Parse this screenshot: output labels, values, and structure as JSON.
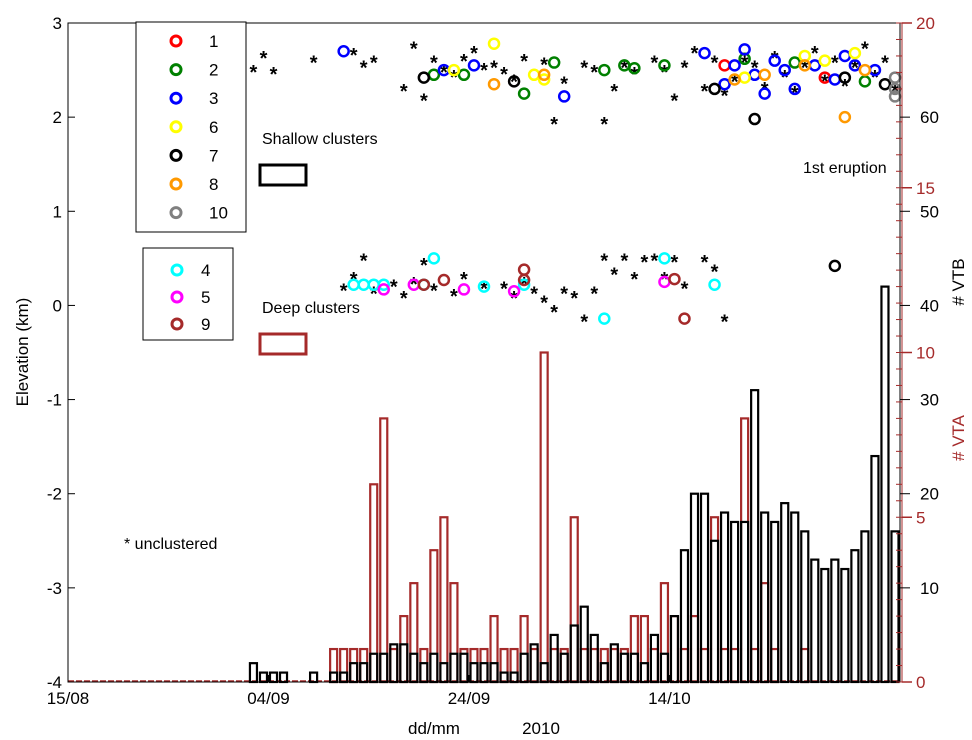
{
  "chart_data": {
    "type": "composite",
    "xlabel": "dd/mm",
    "year_label": "2010",
    "x_ticks": [
      "15/08",
      "04/09",
      "24/09",
      "14/10"
    ],
    "x_tick_dates": [
      "2010-08-15",
      "2010-09-04",
      "2010-09-24",
      "2010-10-14"
    ],
    "x_range": [
      "2010-08-15",
      "2010-11-06"
    ],
    "left_axis": {
      "label": "Elevation (km)",
      "range": [
        -4,
        3
      ],
      "ticks": [
        3,
        2,
        1,
        0,
        -1,
        -2,
        -3,
        -4
      ]
    },
    "right_axis_vta": {
      "label": "# VTA",
      "color": "#a52a2a",
      "range": [
        0,
        20
      ],
      "ticks": [
        20,
        15,
        10,
        5,
        0
      ]
    },
    "right_axis_vtb": {
      "label": "# VTB",
      "color": "#000000",
      "range": [
        0,
        70
      ],
      "ticks": [
        60,
        50,
        40,
        30,
        20,
        10
      ]
    },
    "legend_shallow": [
      {
        "name": "1",
        "color": "#ff0000"
      },
      {
        "name": "2",
        "color": "#008000"
      },
      {
        "name": "3",
        "color": "#0000ff"
      },
      {
        "name": "6",
        "color": "#ffff00"
      },
      {
        "name": "7",
        "color": "#000000"
      },
      {
        "name": "8",
        "color": "#ff9900"
      },
      {
        "name": "10",
        "color": "#808080"
      }
    ],
    "legend_deep": [
      {
        "name": "4",
        "color": "#00ffff"
      },
      {
        "name": "5",
        "color": "#ff00ff"
      },
      {
        "name": "9",
        "color": "#a52a2a"
      }
    ],
    "annotations": {
      "shallow": "Shallow clusters",
      "deep": "Deep clusters",
      "unclustered": "* unclustered",
      "eruption": "1st eruption"
    },
    "vta_series": {
      "name": "# VTA",
      "dates": [
        "2010-09-10",
        "2010-09-11",
        "2010-09-12",
        "2010-09-13",
        "2010-09-14",
        "2010-09-15",
        "2010-09-16",
        "2010-09-17",
        "2010-09-18",
        "2010-09-19",
        "2010-09-20",
        "2010-09-21",
        "2010-09-22",
        "2010-09-23",
        "2010-09-24",
        "2010-09-25",
        "2010-09-26",
        "2010-09-27",
        "2010-09-28",
        "2010-09-29",
        "2010-09-30",
        "2010-10-01",
        "2010-10-02",
        "2010-10-03",
        "2010-10-04",
        "2010-10-05",
        "2010-10-06",
        "2010-10-07",
        "2010-10-08",
        "2010-10-09",
        "2010-10-10",
        "2010-10-11",
        "2010-10-12",
        "2010-10-13",
        "2010-10-14",
        "2010-10-15",
        "2010-10-16",
        "2010-10-17",
        "2010-10-18",
        "2010-10-19",
        "2010-10-20",
        "2010-10-21",
        "2010-10-22",
        "2010-10-23",
        "2010-10-24",
        "2010-10-25",
        "2010-10-26",
        "2010-10-27",
        "2010-10-28",
        "2010-10-29",
        "2010-10-30",
        "2010-10-31",
        "2010-11-01",
        "2010-11-02",
        "2010-11-03",
        "2010-11-04",
        "2010-11-05"
      ],
      "values": [
        1,
        1,
        1,
        1,
        6,
        8,
        1,
        2,
        3,
        1,
        4,
        5,
        3,
        1,
        1,
        1,
        2,
        1,
        1,
        2,
        1,
        10,
        1,
        1,
        5,
        1,
        1,
        1,
        1,
        1,
        2,
        2,
        1,
        3,
        2,
        1,
        2,
        1,
        5,
        1,
        1,
        8,
        1,
        3,
        1,
        0,
        0,
        1,
        0,
        0,
        0,
        0,
        0,
        0,
        0,
        0,
        0
      ]
    },
    "vtb_series": {
      "name": "# VTB",
      "dates": [
        "2010-09-02",
        "2010-09-03",
        "2010-09-04",
        "2010-09-05",
        "2010-09-06",
        "2010-09-07",
        "2010-09-08",
        "2010-09-09",
        "2010-09-10",
        "2010-09-11",
        "2010-09-12",
        "2010-09-13",
        "2010-09-14",
        "2010-09-15",
        "2010-09-16",
        "2010-09-17",
        "2010-09-18",
        "2010-09-19",
        "2010-09-20",
        "2010-09-21",
        "2010-09-22",
        "2010-09-23",
        "2010-09-24",
        "2010-09-25",
        "2010-09-26",
        "2010-09-27",
        "2010-09-28",
        "2010-09-29",
        "2010-09-30",
        "2010-10-01",
        "2010-10-02",
        "2010-10-03",
        "2010-10-04",
        "2010-10-05",
        "2010-10-06",
        "2010-10-07",
        "2010-10-08",
        "2010-10-09",
        "2010-10-10",
        "2010-10-11",
        "2010-10-12",
        "2010-10-13",
        "2010-10-14",
        "2010-10-15",
        "2010-10-16",
        "2010-10-17",
        "2010-10-18",
        "2010-10-19",
        "2010-10-20",
        "2010-10-21",
        "2010-10-22",
        "2010-10-23",
        "2010-10-24",
        "2010-10-25",
        "2010-10-26",
        "2010-10-27",
        "2010-10-28",
        "2010-10-29",
        "2010-10-30",
        "2010-10-31",
        "2010-11-01",
        "2010-11-02",
        "2010-11-03",
        "2010-11-04",
        "2010-11-05"
      ],
      "values": [
        2,
        1,
        1,
        1,
        0,
        0,
        1,
        0,
        1,
        1,
        2,
        2,
        3,
        3,
        4,
        4,
        3,
        2,
        3,
        2,
        3,
        3,
        2,
        2,
        2,
        1,
        1,
        3,
        4,
        2,
        5,
        3,
        6,
        8,
        5,
        2,
        4,
        3,
        3,
        2,
        5,
        3,
        7,
        14,
        20,
        20,
        15,
        18,
        17,
        17,
        31,
        18,
        17,
        19,
        18,
        16,
        13,
        12,
        13,
        12,
        14,
        16,
        24,
        42,
        16
      ]
    },
    "unclustered_events": [
      {
        "x": "2010-09-02",
        "y": 2.5
      },
      {
        "x": "2010-09-03",
        "y": 2.65
      },
      {
        "x": "2010-09-04",
        "y": 2.48
      },
      {
        "x": "2010-09-08",
        "y": 2.6
      },
      {
        "x": "2010-09-12",
        "y": 2.68
      },
      {
        "x": "2010-09-13",
        "y": 2.55
      },
      {
        "x": "2010-09-14",
        "y": 2.6
      },
      {
        "x": "2010-09-17",
        "y": 2.3
      },
      {
        "x": "2010-09-18",
        "y": 2.75
      },
      {
        "x": "2010-09-19",
        "y": 2.2
      },
      {
        "x": "2010-09-20",
        "y": 2.6
      },
      {
        "x": "2010-09-21",
        "y": 2.5
      },
      {
        "x": "2010-09-22",
        "y": 2.45
      },
      {
        "x": "2010-09-23",
        "y": 2.62
      },
      {
        "x": "2010-09-24",
        "y": 2.7
      },
      {
        "x": "2010-09-25",
        "y": 2.52
      },
      {
        "x": "2010-09-26",
        "y": 2.55
      },
      {
        "x": "2010-09-27",
        "y": 2.48
      },
      {
        "x": "2010-09-28",
        "y": 2.4
      },
      {
        "x": "2010-09-29",
        "y": 2.62
      },
      {
        "x": "2010-10-01",
        "y": 2.58
      },
      {
        "x": "2010-10-02",
        "y": 1.95
      },
      {
        "x": "2010-10-03",
        "y": 2.38
      },
      {
        "x": "2010-10-05",
        "y": 2.55
      },
      {
        "x": "2010-10-06",
        "y": 2.5
      },
      {
        "x": "2010-10-07",
        "y": 1.95
      },
      {
        "x": "2010-10-08",
        "y": 2.3
      },
      {
        "x": "2010-10-09",
        "y": 2.55
      },
      {
        "x": "2010-10-10",
        "y": 2.48
      },
      {
        "x": "2010-10-12",
        "y": 2.6
      },
      {
        "x": "2010-10-13",
        "y": 2.5
      },
      {
        "x": "2010-10-14",
        "y": 2.2
      },
      {
        "x": "2010-10-15",
        "y": 2.55
      },
      {
        "x": "2010-10-16",
        "y": 2.7
      },
      {
        "x": "2010-10-17",
        "y": 2.3
      },
      {
        "x": "2010-10-18",
        "y": 2.6
      },
      {
        "x": "2010-10-19",
        "y": 2.25
      },
      {
        "x": "2010-10-20",
        "y": 2.4
      },
      {
        "x": "2010-10-21",
        "y": 2.6
      },
      {
        "x": "2010-10-22",
        "y": 2.55
      },
      {
        "x": "2010-10-23",
        "y": 2.32
      },
      {
        "x": "2010-10-24",
        "y": 2.65
      },
      {
        "x": "2010-10-25",
        "y": 2.45
      },
      {
        "x": "2010-10-26",
        "y": 2.28
      },
      {
        "x": "2010-10-27",
        "y": 2.55
      },
      {
        "x": "2010-10-28",
        "y": 2.7
      },
      {
        "x": "2010-10-29",
        "y": 2.4
      },
      {
        "x": "2010-10-30",
        "y": 2.6
      },
      {
        "x": "2010-10-31",
        "y": 2.35
      },
      {
        "x": "2010-11-01",
        "y": 2.55
      },
      {
        "x": "2010-11-02",
        "y": 2.75
      },
      {
        "x": "2010-11-03",
        "y": 2.45
      },
      {
        "x": "2010-11-04",
        "y": 2.6
      },
      {
        "x": "2010-11-05",
        "y": 2.3
      },
      {
        "x": "2010-09-11",
        "y": 0.18
      },
      {
        "x": "2010-09-12",
        "y": 0.3
      },
      {
        "x": "2010-09-13",
        "y": 0.5
      },
      {
        "x": "2010-09-14",
        "y": 0.15
      },
      {
        "x": "2010-09-16",
        "y": 0.22
      },
      {
        "x": "2010-09-17",
        "y": 0.1
      },
      {
        "x": "2010-09-18",
        "y": 0.25
      },
      {
        "x": "2010-09-19",
        "y": 0.45
      },
      {
        "x": "2010-09-20",
        "y": 0.18
      },
      {
        "x": "2010-09-22",
        "y": 0.12
      },
      {
        "x": "2010-09-23",
        "y": 0.3
      },
      {
        "x": "2010-09-25",
        "y": 0.2
      },
      {
        "x": "2010-09-27",
        "y": 0.2
      },
      {
        "x": "2010-09-28",
        "y": 0.1
      },
      {
        "x": "2010-09-29",
        "y": 0.25
      },
      {
        "x": "2010-09-30",
        "y": 0.15
      },
      {
        "x": "2010-10-01",
        "y": 0.05
      },
      {
        "x": "2010-10-02",
        "y": -0.05
      },
      {
        "x": "2010-10-03",
        "y": 0.15
      },
      {
        "x": "2010-10-04",
        "y": 0.1
      },
      {
        "x": "2010-10-05",
        "y": -0.15
      },
      {
        "x": "2010-10-06",
        "y": 0.15
      },
      {
        "x": "2010-10-07",
        "y": 0.5
      },
      {
        "x": "2010-10-08",
        "y": 0.35
      },
      {
        "x": "2010-10-09",
        "y": 0.5
      },
      {
        "x": "2010-10-10",
        "y": 0.3
      },
      {
        "x": "2010-10-11",
        "y": 0.48
      },
      {
        "x": "2010-10-12",
        "y": 0.5
      },
      {
        "x": "2010-10-13",
        "y": 0.3
      },
      {
        "x": "2010-10-14",
        "y": 0.48
      },
      {
        "x": "2010-10-15",
        "y": 0.2
      },
      {
        "x": "2010-10-17",
        "y": 0.48
      },
      {
        "x": "2010-10-18",
        "y": 0.38
      },
      {
        "x": "2010-10-19",
        "y": -0.15
      }
    ],
    "cluster_events": [
      {
        "cluster": "1",
        "x": "2010-10-19",
        "y": 2.55
      },
      {
        "cluster": "1",
        "x": "2010-10-29",
        "y": 2.42
      },
      {
        "cluster": "2",
        "x": "2010-09-20",
        "y": 2.45
      },
      {
        "cluster": "2",
        "x": "2010-09-23",
        "y": 2.45
      },
      {
        "cluster": "2",
        "x": "2010-09-29",
        "y": 2.25
      },
      {
        "cluster": "2",
        "x": "2010-10-02",
        "y": 2.58
      },
      {
        "cluster": "2",
        "x": "2010-10-07",
        "y": 2.5
      },
      {
        "cluster": "2",
        "x": "2010-10-09",
        "y": 2.55
      },
      {
        "cluster": "2",
        "x": "2010-10-10",
        "y": 2.52
      },
      {
        "cluster": "2",
        "x": "2010-10-13",
        "y": 2.55
      },
      {
        "cluster": "2",
        "x": "2010-10-21",
        "y": 2.62
      },
      {
        "cluster": "2",
        "x": "2010-10-26",
        "y": 2.58
      },
      {
        "cluster": "2",
        "x": "2010-11-02",
        "y": 2.38
      },
      {
        "cluster": "3",
        "x": "2010-09-11",
        "y": 2.7
      },
      {
        "cluster": "3",
        "x": "2010-09-21",
        "y": 2.5
      },
      {
        "cluster": "3",
        "x": "2010-09-24",
        "y": 2.55
      },
      {
        "cluster": "3",
        "x": "2010-10-03",
        "y": 2.22
      },
      {
        "cluster": "3",
        "x": "2010-10-17",
        "y": 2.68
      },
      {
        "cluster": "3",
        "x": "2010-10-19",
        "y": 2.35
      },
      {
        "cluster": "3",
        "x": "2010-10-20",
        "y": 2.55
      },
      {
        "cluster": "3",
        "x": "2010-10-21",
        "y": 2.72
      },
      {
        "cluster": "3",
        "x": "2010-10-22",
        "y": 2.45
      },
      {
        "cluster": "3",
        "x": "2010-10-23",
        "y": 2.25
      },
      {
        "cluster": "3",
        "x": "2010-10-24",
        "y": 2.6
      },
      {
        "cluster": "3",
        "x": "2010-10-25",
        "y": 2.5
      },
      {
        "cluster": "3",
        "x": "2010-10-26",
        "y": 2.3
      },
      {
        "cluster": "3",
        "x": "2010-10-28",
        "y": 2.55
      },
      {
        "cluster": "3",
        "x": "2010-10-30",
        "y": 2.4
      },
      {
        "cluster": "3",
        "x": "2010-10-31",
        "y": 2.65
      },
      {
        "cluster": "3",
        "x": "2010-11-01",
        "y": 2.55
      },
      {
        "cluster": "3",
        "x": "2010-11-03",
        "y": 2.5
      },
      {
        "cluster": "6",
        "x": "2010-09-22",
        "y": 2.5
      },
      {
        "cluster": "6",
        "x": "2010-09-26",
        "y": 2.78
      },
      {
        "cluster": "6",
        "x": "2010-09-30",
        "y": 2.45
      },
      {
        "cluster": "6",
        "x": "2010-10-01",
        "y": 2.4
      },
      {
        "cluster": "6",
        "x": "2010-10-21",
        "y": 2.42
      },
      {
        "cluster": "6",
        "x": "2010-10-27",
        "y": 2.65
      },
      {
        "cluster": "6",
        "x": "2010-10-29",
        "y": 2.6
      },
      {
        "cluster": "6",
        "x": "2010-11-01",
        "y": 2.68
      },
      {
        "cluster": "7",
        "x": "2010-09-19",
        "y": 2.42
      },
      {
        "cluster": "7",
        "x": "2010-09-28",
        "y": 2.38
      },
      {
        "cluster": "7",
        "x": "2010-10-18",
        "y": 2.3
      },
      {
        "cluster": "7",
        "x": "2010-10-22",
        "y": 1.98
      },
      {
        "cluster": "7",
        "x": "2010-10-31",
        "y": 2.42
      },
      {
        "cluster": "7",
        "x": "2010-11-04",
        "y": 2.35
      },
      {
        "cluster": "7",
        "x": "2010-10-30",
        "y": 0.42
      },
      {
        "cluster": "8",
        "x": "2010-09-26",
        "y": 2.35
      },
      {
        "cluster": "8",
        "x": "2010-10-01",
        "y": 2.45
      },
      {
        "cluster": "8",
        "x": "2010-10-20",
        "y": 2.4
      },
      {
        "cluster": "8",
        "x": "2010-10-23",
        "y": 2.45
      },
      {
        "cluster": "8",
        "x": "2010-10-27",
        "y": 2.55
      },
      {
        "cluster": "8",
        "x": "2010-10-31",
        "y": 2.0
      },
      {
        "cluster": "8",
        "x": "2010-11-02",
        "y": 2.5
      },
      {
        "cluster": "10",
        "x": "2010-11-05",
        "y": 2.42
      },
      {
        "cluster": "10",
        "x": "2010-11-05",
        "y": 2.3
      },
      {
        "cluster": "10",
        "x": "2010-11-05",
        "y": 2.22
      },
      {
        "cluster": "4",
        "x": "2010-09-12",
        "y": 0.22
      },
      {
        "cluster": "4",
        "x": "2010-09-13",
        "y": 0.22
      },
      {
        "cluster": "4",
        "x": "2010-09-14",
        "y": 0.22
      },
      {
        "cluster": "4",
        "x": "2010-09-15",
        "y": 0.22
      },
      {
        "cluster": "4",
        "x": "2010-09-19",
        "y": 0.22
      },
      {
        "cluster": "4",
        "x": "2010-09-20",
        "y": 0.5
      },
      {
        "cluster": "4",
        "x": "2010-09-25",
        "y": 0.2
      },
      {
        "cluster": "4",
        "x": "2010-09-29",
        "y": 0.22
      },
      {
        "cluster": "4",
        "x": "2010-10-07",
        "y": -0.14
      },
      {
        "cluster": "4",
        "x": "2010-10-13",
        "y": 0.5
      },
      {
        "cluster": "4",
        "x": "2010-10-18",
        "y": 0.22
      },
      {
        "cluster": "5",
        "x": "2010-09-15",
        "y": 0.17
      },
      {
        "cluster": "5",
        "x": "2010-09-18",
        "y": 0.22
      },
      {
        "cluster": "5",
        "x": "2010-09-23",
        "y": 0.17
      },
      {
        "cluster": "5",
        "x": "2010-09-28",
        "y": 0.15
      },
      {
        "cluster": "5",
        "x": "2010-10-13",
        "y": 0.25
      },
      {
        "cluster": "9",
        "x": "2010-09-19",
        "y": 0.22
      },
      {
        "cluster": "9",
        "x": "2010-09-21",
        "y": 0.27
      },
      {
        "cluster": "9",
        "x": "2010-09-29",
        "y": 0.38
      },
      {
        "cluster": "9",
        "x": "2010-09-29",
        "y": 0.27
      },
      {
        "cluster": "9",
        "x": "2010-10-14",
        "y": 0.28
      },
      {
        "cluster": "9",
        "x": "2010-10-15",
        "y": -0.14
      }
    ]
  }
}
